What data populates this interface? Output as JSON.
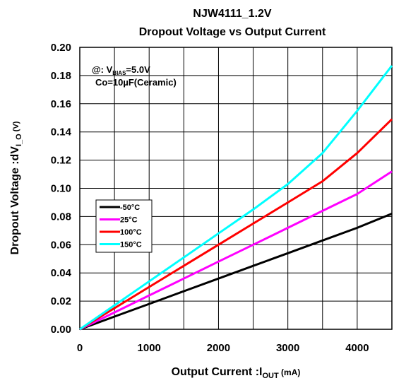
{
  "chart_data": {
    "type": "line",
    "title": "NJW4111_1.2V",
    "subtitle": "Dropout Voltage vs Output Current",
    "xlabel": {
      "main": "Output Current  :I",
      "sub": "OUT",
      "unit": " (mA)"
    },
    "ylabel": {
      "main": "Dropout Voltage  :dV",
      "sub": "I_O",
      "unit": " (V)"
    },
    "xlim": [
      0,
      4500
    ],
    "ylim": [
      0,
      0.2
    ],
    "x_ticks": [
      0,
      1000,
      2000,
      3000,
      4000
    ],
    "x_tick_labels": [
      "0",
      "1000",
      "2000",
      "3000",
      "4000"
    ],
    "y_ticks": [
      0,
      0.02,
      0.04,
      0.06,
      0.08,
      0.1,
      0.12,
      0.14,
      0.16,
      0.18,
      0.2
    ],
    "y_tick_labels": [
      "0.00",
      "0.02",
      "0.04",
      "0.06",
      "0.08",
      "0.10",
      "0.12",
      "0.14",
      "0.16",
      "0.18",
      "0.20"
    ],
    "x_grid": [
      0,
      500,
      1000,
      1500,
      2000,
      2500,
      3000,
      3500,
      4000,
      4500
    ],
    "grid": true,
    "conditions": {
      "line1_prefix": "@:  V",
      "line1_sub": "BIAS",
      "line1_suffix": "=5.0V",
      "line2": "Co=10µF(Ceramic)"
    },
    "legend_position": "middle-left",
    "series": [
      {
        "name": "-50°C",
        "color": "#000000",
        "points": [
          [
            0,
            0
          ],
          [
            500,
            0.009
          ],
          [
            1000,
            0.018
          ],
          [
            1500,
            0.027
          ],
          [
            2000,
            0.036
          ],
          [
            2500,
            0.045
          ],
          [
            3000,
            0.054
          ],
          [
            3500,
            0.063
          ],
          [
            4000,
            0.072
          ],
          [
            4500,
            0.082
          ]
        ]
      },
      {
        "name": "25°C",
        "color": "#ff00ff",
        "points": [
          [
            0,
            0
          ],
          [
            500,
            0.012
          ],
          [
            1000,
            0.024
          ],
          [
            1500,
            0.036
          ],
          [
            2000,
            0.048
          ],
          [
            2500,
            0.06
          ],
          [
            3000,
            0.072
          ],
          [
            3500,
            0.084
          ],
          [
            4000,
            0.096
          ],
          [
            4500,
            0.112
          ]
        ]
      },
      {
        "name": "100°C",
        "color": "#ff0000",
        "points": [
          [
            0,
            0
          ],
          [
            500,
            0.015
          ],
          [
            1000,
            0.03
          ],
          [
            1500,
            0.045
          ],
          [
            2000,
            0.06
          ],
          [
            2500,
            0.075
          ],
          [
            3000,
            0.09
          ],
          [
            3500,
            0.105
          ],
          [
            4000,
            0.125
          ],
          [
            4500,
            0.149
          ]
        ]
      },
      {
        "name": "150°C",
        "color": "#00ffff",
        "points": [
          [
            0,
            0
          ],
          [
            500,
            0.017
          ],
          [
            1000,
            0.034
          ],
          [
            1500,
            0.051
          ],
          [
            2000,
            0.068
          ],
          [
            2500,
            0.085
          ],
          [
            3000,
            0.103
          ],
          [
            3500,
            0.125
          ],
          [
            4000,
            0.155
          ],
          [
            4500,
            0.187
          ]
        ]
      }
    ]
  }
}
